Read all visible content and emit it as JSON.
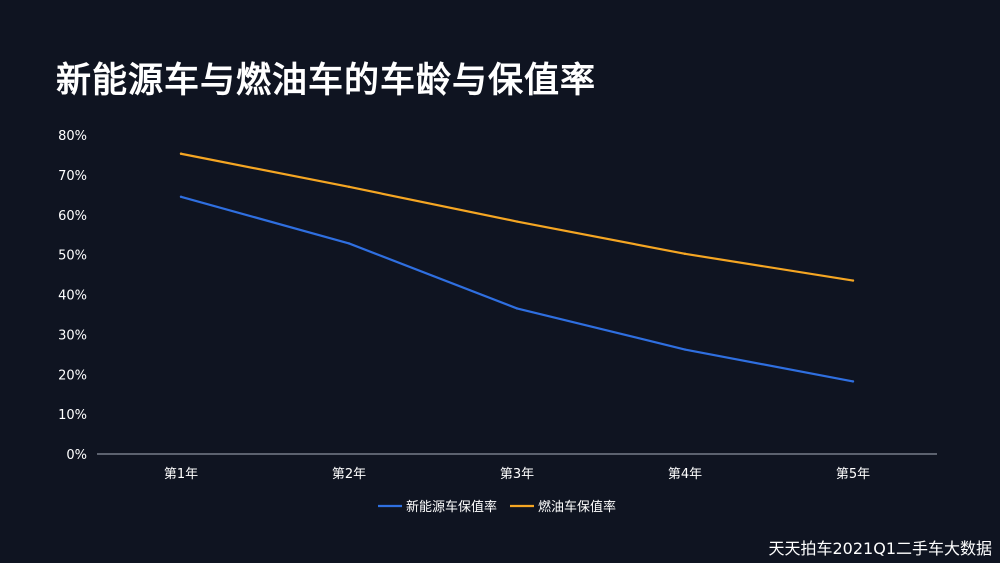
{
  "title": "新能源车与燃油车的车龄与保值率",
  "source": "天天拍车2021Q1二手车大数据",
  "colors": {
    "background": "#0f1421",
    "ev": "#2f6fe0",
    "fuel": "#f5a623",
    "axis": "#aab0bd"
  },
  "chart_data": {
    "type": "line",
    "title": "新能源车与燃油车的车龄与保值率",
    "categories": [
      "第1年",
      "第2年",
      "第3年",
      "第4年",
      "第5年"
    ],
    "series": [
      {
        "name": "新能源车保值率",
        "values": [
          64.5,
          52.8,
          36.5,
          26.2,
          18.2
        ]
      },
      {
        "name": "燃油车保值率",
        "values": [
          75.3,
          67.0,
          58.3,
          50.2,
          43.5
        ]
      }
    ],
    "y_ticks": [
      "0%",
      "10%",
      "20%",
      "30%",
      "40%",
      "50%",
      "60%",
      "70%",
      "80%"
    ],
    "ylim": [
      0,
      80
    ],
    "y_unit": "%",
    "grid": false,
    "legend": "bottom-center"
  }
}
